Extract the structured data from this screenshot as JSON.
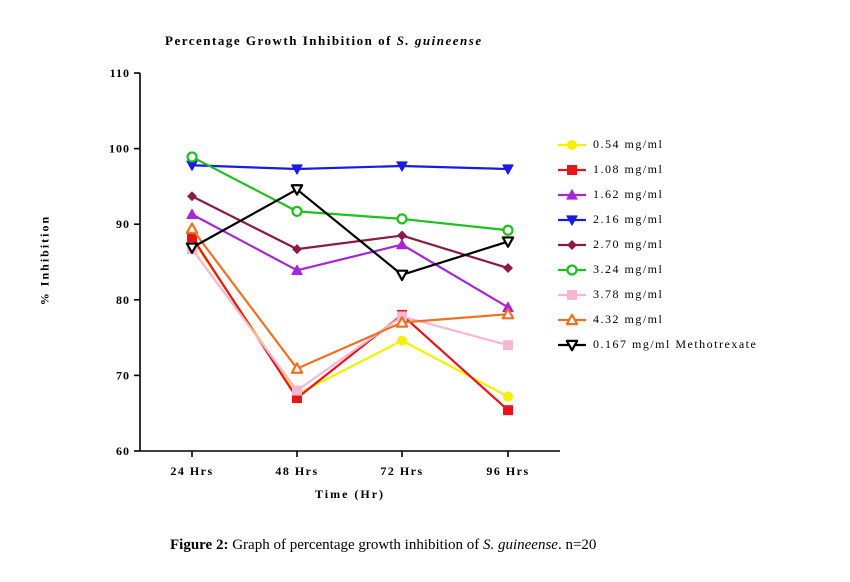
{
  "chart_data": {
    "type": "line",
    "title_prefix": "Percentage Growth Inhibition of ",
    "title_species": "S. guineense",
    "xlabel": "Time (Hr)",
    "ylabel": "% Inhibition",
    "categories": [
      "24 Hrs",
      "48 Hrs",
      "72 Hrs",
      "96 Hrs"
    ],
    "ylim": [
      60,
      110
    ],
    "yticks": [
      60,
      70,
      80,
      90,
      100,
      110
    ],
    "grid": false,
    "legend_position": "right",
    "series": [
      {
        "name": "0.54 mg/ml",
        "values": [
          88.0,
          67.5,
          74.6,
          67.2
        ],
        "color": "#f5f000",
        "marker": "circle-filled"
      },
      {
        "name": "1.08 mg/ml",
        "values": [
          88.3,
          67.0,
          78.0,
          65.4
        ],
        "color": "#e8141a",
        "marker": "square-filled"
      },
      {
        "name": "1.62 mg/ml",
        "values": [
          91.3,
          83.9,
          87.3,
          79.0
        ],
        "color": "#a626d6",
        "marker": "triangle-up-filled"
      },
      {
        "name": "2.16 mg/ml",
        "values": [
          97.8,
          97.3,
          97.7,
          97.3
        ],
        "color": "#1a1ae6",
        "marker": "triangle-down-filled"
      },
      {
        "name": "2.70 mg/ml",
        "values": [
          93.7,
          86.7,
          88.5,
          84.2
        ],
        "color": "#8b1a4a",
        "marker": "diamond-filled"
      },
      {
        "name": "3.24 mg/ml",
        "values": [
          98.9,
          91.7,
          90.7,
          89.2
        ],
        "color": "#1fbf1f",
        "marker": "circle-open"
      },
      {
        "name": "3.78 mg/ml",
        "values": [
          86.7,
          68.0,
          77.8,
          74.0
        ],
        "color": "#f7b6d2",
        "marker": "square-filled"
      },
      {
        "name": "4.32 mg/ml",
        "values": [
          89.4,
          70.9,
          77.0,
          78.1
        ],
        "color": "#f07020",
        "marker": "triangle-up-open"
      },
      {
        "name": "0.167 mg/ml Methotrexate",
        "values": [
          86.9,
          94.6,
          83.3,
          87.7
        ],
        "color": "#000000",
        "marker": "triangle-down-open"
      }
    ]
  },
  "caption": {
    "label": "Figure 2:",
    "text": " Graph of percentage growth inhibition of ",
    "species": "S. guineense",
    "suffix": ". n=20"
  }
}
